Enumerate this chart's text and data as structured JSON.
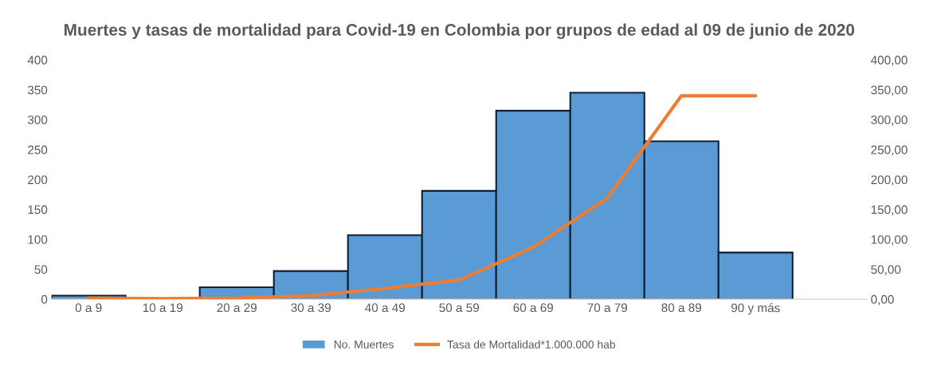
{
  "chart_data": {
    "type": "bar",
    "title": "Muertes y tasas de mortalidad para Covid-19 en Colombia por grupos de edad al 09 de junio de 2020",
    "categories": [
      "0 a 9",
      "10 a 19",
      "20 a 29",
      "30 a 39",
      "40 a 49",
      "50 a 59",
      "60 a 69",
      "70 a 79",
      "80 a 89",
      "90 y más",
      null
    ],
    "series": [
      {
        "name": "No. Muertes",
        "color": "#5b9bd5",
        "values": [
          6,
          0,
          20,
          47,
          107,
          181,
          315,
          345,
          264,
          78,
          null
        ]
      },
      {
        "name": "Tasa de Mortalidad*1.000.000 hab",
        "type": "line",
        "axis": "y2",
        "color": "#ed7d31",
        "values": [
          2,
          1,
          2,
          6,
          18,
          32,
          87,
          169,
          340,
          340,
          null
        ]
      }
    ],
    "ylim": [
      0,
      400
    ],
    "yticks": [
      0,
      50,
      100,
      150,
      200,
      250,
      300,
      350,
      400
    ],
    "y2lim": [
      0,
      400
    ],
    "y2ticks": [
      {
        "value": 0,
        "label": "0,00"
      },
      {
        "value": 50,
        "label": "50,00"
      },
      {
        "value": 100,
        "label": "100,00"
      },
      {
        "value": 150,
        "label": "150,00"
      },
      {
        "value": 200,
        "label": "200,00"
      },
      {
        "value": 250,
        "label": "250,00"
      },
      {
        "value": 300,
        "label": "300,00"
      },
      {
        "value": 350,
        "label": "350,00"
      },
      {
        "value": 400,
        "label": "400,00"
      }
    ],
    "legend": "bottom",
    "grid": false,
    "marker": "none"
  }
}
